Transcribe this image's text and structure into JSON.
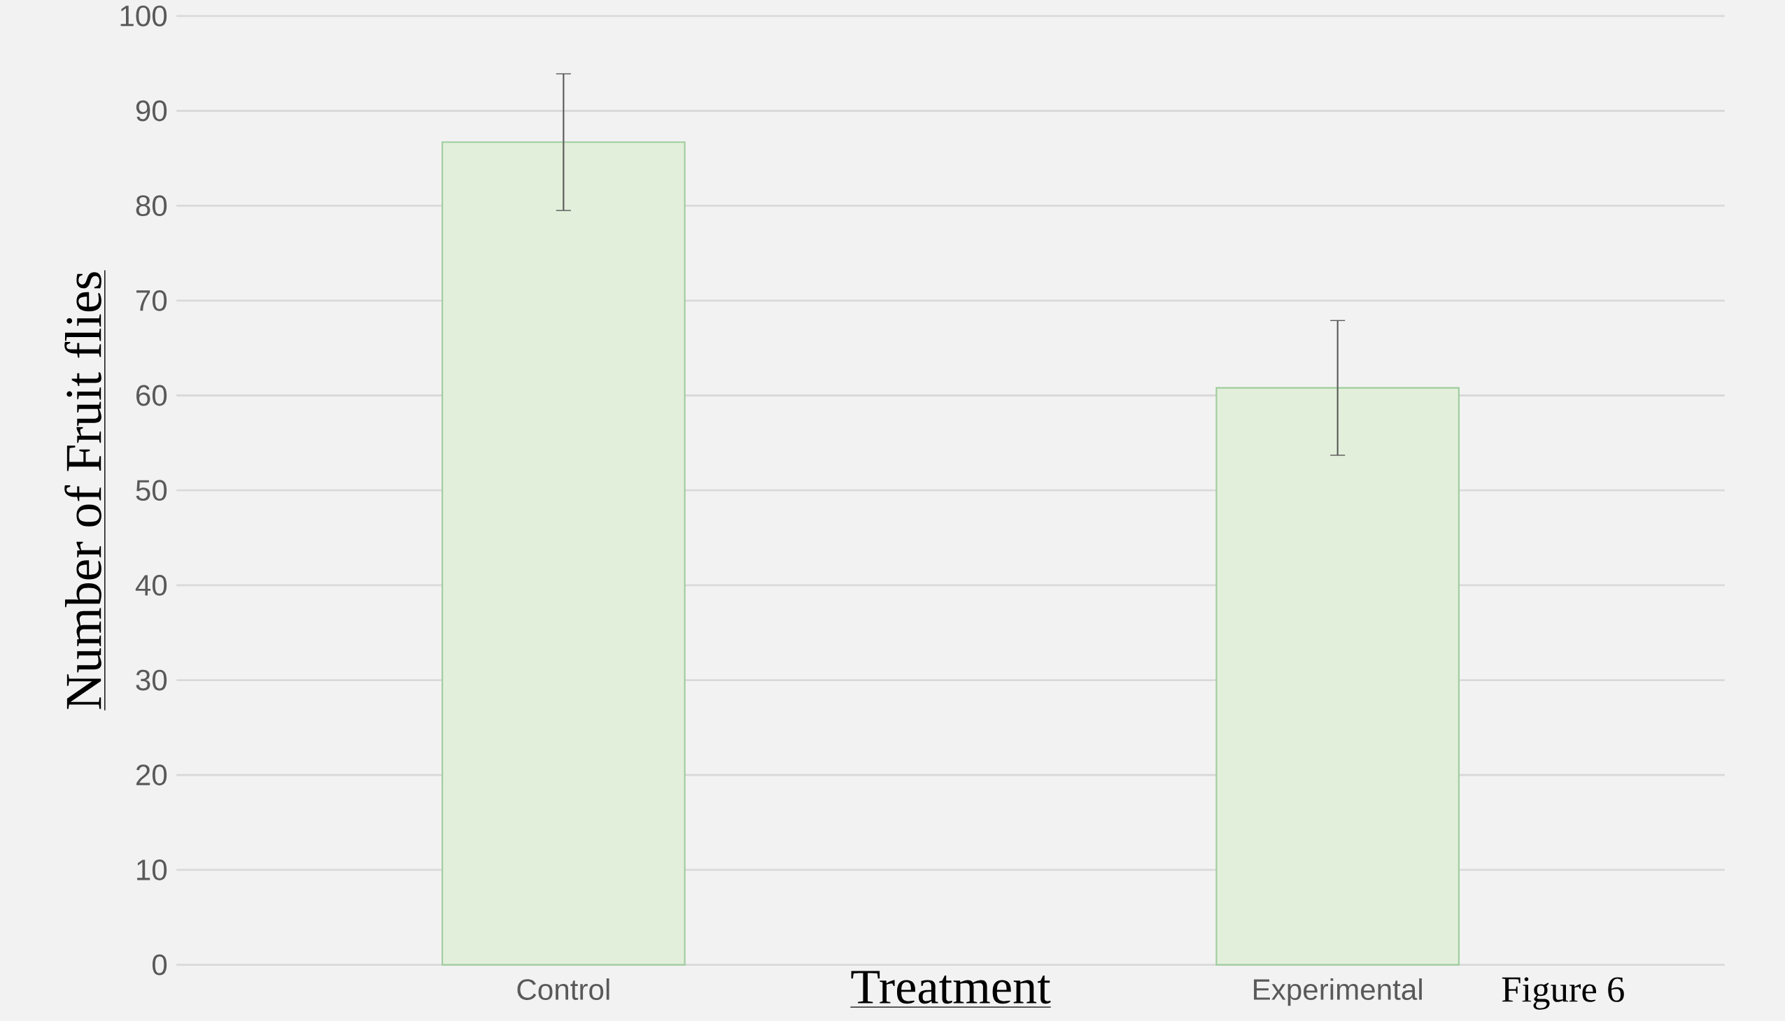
{
  "chart_data": {
    "type": "bar",
    "categories": [
      "Control",
      "Experimental"
    ],
    "values": [
      86.7,
      60.8
    ],
    "errors": [
      7.2,
      7.1
    ],
    "color": "#e2efda",
    "xlabel": "Treatment",
    "ylabel": "Number of Fruit flies",
    "ylim": [
      0,
      100
    ],
    "yticks": [
      0,
      10,
      20,
      30,
      40,
      50,
      60,
      70,
      80,
      90,
      100
    ],
    "grid": "y",
    "annotations": [
      "Figure 6"
    ]
  }
}
